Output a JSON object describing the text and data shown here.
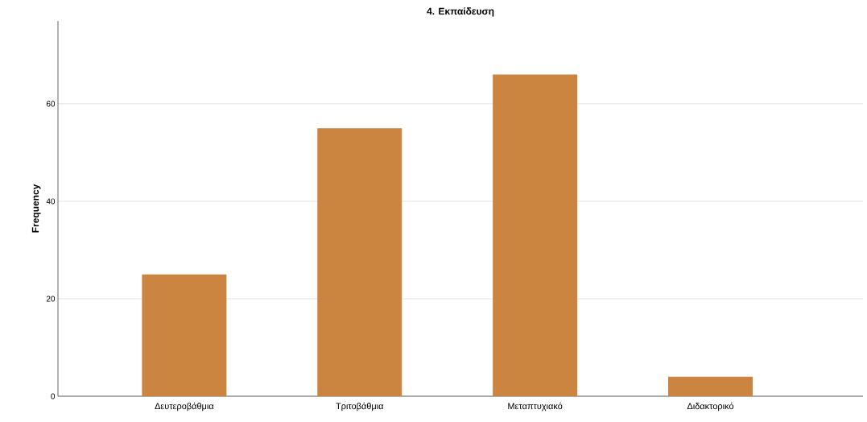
{
  "chart_data": {
    "type": "bar",
    "title": "4. Εκπαίδευση",
    "ylabel": "Frequency",
    "categories": [
      "Δευτεροβάθμια",
      "Τριτοβάθμια",
      "Μεταπτυχιακό",
      "Διδακτορικό"
    ],
    "values": [
      25,
      55,
      66,
      4
    ],
    "color": "#cc8540",
    "ylim": [
      0,
      77
    ],
    "yticks": [
      0,
      20,
      40,
      60
    ],
    "grid": "y"
  }
}
